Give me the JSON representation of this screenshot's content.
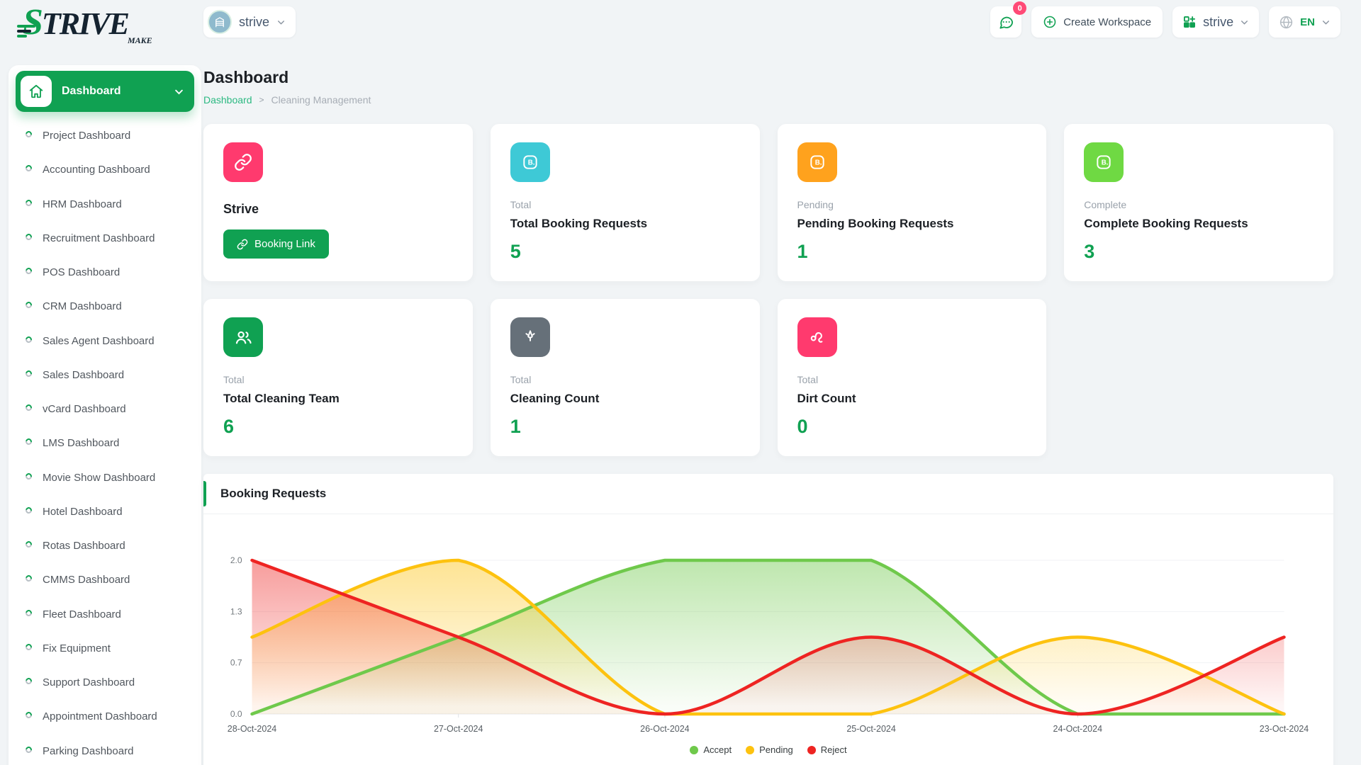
{
  "brand": {
    "initial": "S",
    "rest": "TRIVE",
    "tagline": "MAKE"
  },
  "header": {
    "workspace_pill_label": "strive",
    "chat_badge": "0",
    "create_workspace_label": "Create Workspace",
    "workspace_switcher_label": "strive",
    "language": "EN"
  },
  "sidebar": {
    "active_label": "Dashboard",
    "items": [
      "Project Dashboard",
      "Accounting Dashboard",
      "HRM Dashboard",
      "Recruitment Dashboard",
      "POS Dashboard",
      "CRM Dashboard",
      "Sales Agent Dashboard",
      "Sales Dashboard",
      "vCard Dashboard",
      "LMS Dashboard",
      "Movie Show Dashboard",
      "Hotel Dashboard",
      "Rotas Dashboard",
      "CMMS Dashboard",
      "Fleet Dashboard",
      "Fix Equipment",
      "Support Dashboard",
      "Appointment Dashboard",
      "Parking Dashboard"
    ]
  },
  "page": {
    "title": "Dashboard",
    "breadcrumb_root": "Dashboard",
    "breadcrumb_sep": ">",
    "breadcrumb_current": "Cleaning Management"
  },
  "cards": {
    "brand_card": {
      "title": "Strive",
      "button_label": "Booking Link",
      "icon_color": "#ff3a6e"
    },
    "stats": [
      {
        "tag": "Total",
        "title": "Total Booking Requests",
        "value": "5",
        "icon": "booking-icon",
        "icon_color": "#3ec9d6"
      },
      {
        "tag": "Pending",
        "title": "Pending Booking Requests",
        "value": "1",
        "icon": "booking-icon",
        "icon_color": "#ffa21d"
      },
      {
        "tag": "Complete",
        "title": "Complete Booking Requests",
        "value": "3",
        "icon": "booking-icon",
        "icon_color": "#6fd943"
      },
      {
        "tag": "Total",
        "title": "Total Cleaning Team",
        "value": "6",
        "icon": "team-icon",
        "icon_color": "#10a152"
      },
      {
        "tag": "Total",
        "title": "Cleaning Count",
        "value": "1",
        "icon": "cleaning-icon",
        "icon_color": "#667079"
      },
      {
        "tag": "Total",
        "title": "Dirt Count",
        "value": "0",
        "icon": "dirt-icon",
        "icon_color": "#ff3a6e"
      }
    ]
  },
  "chart_card": {
    "title": "Booking Requests"
  },
  "chart_data": {
    "type": "area",
    "curve": "smooth",
    "x": [
      "28-Oct-2024",
      "27-Oct-2024",
      "26-Oct-2024",
      "25-Oct-2024",
      "24-Oct-2024",
      "23-Oct-2024"
    ],
    "series": [
      {
        "name": "Accept",
        "color": "#6fc94b",
        "values": [
          0,
          1,
          2,
          2,
          0,
          0
        ]
      },
      {
        "name": "Pending",
        "color": "#fdc20f",
        "values": [
          1,
          2,
          0,
          0,
          1,
          0
        ]
      },
      {
        "name": "Reject",
        "color": "#ee2422",
        "values": [
          2,
          1,
          0,
          1,
          0,
          1
        ]
      }
    ],
    "ylim": [
      0,
      2
    ],
    "yticks": [
      0,
      0.6667,
      1.3333,
      2
    ],
    "ytick_labels": [
      "0.0",
      "0.7",
      "1.3",
      "2.0"
    ],
    "grid": true,
    "legend_position": "bottom"
  }
}
